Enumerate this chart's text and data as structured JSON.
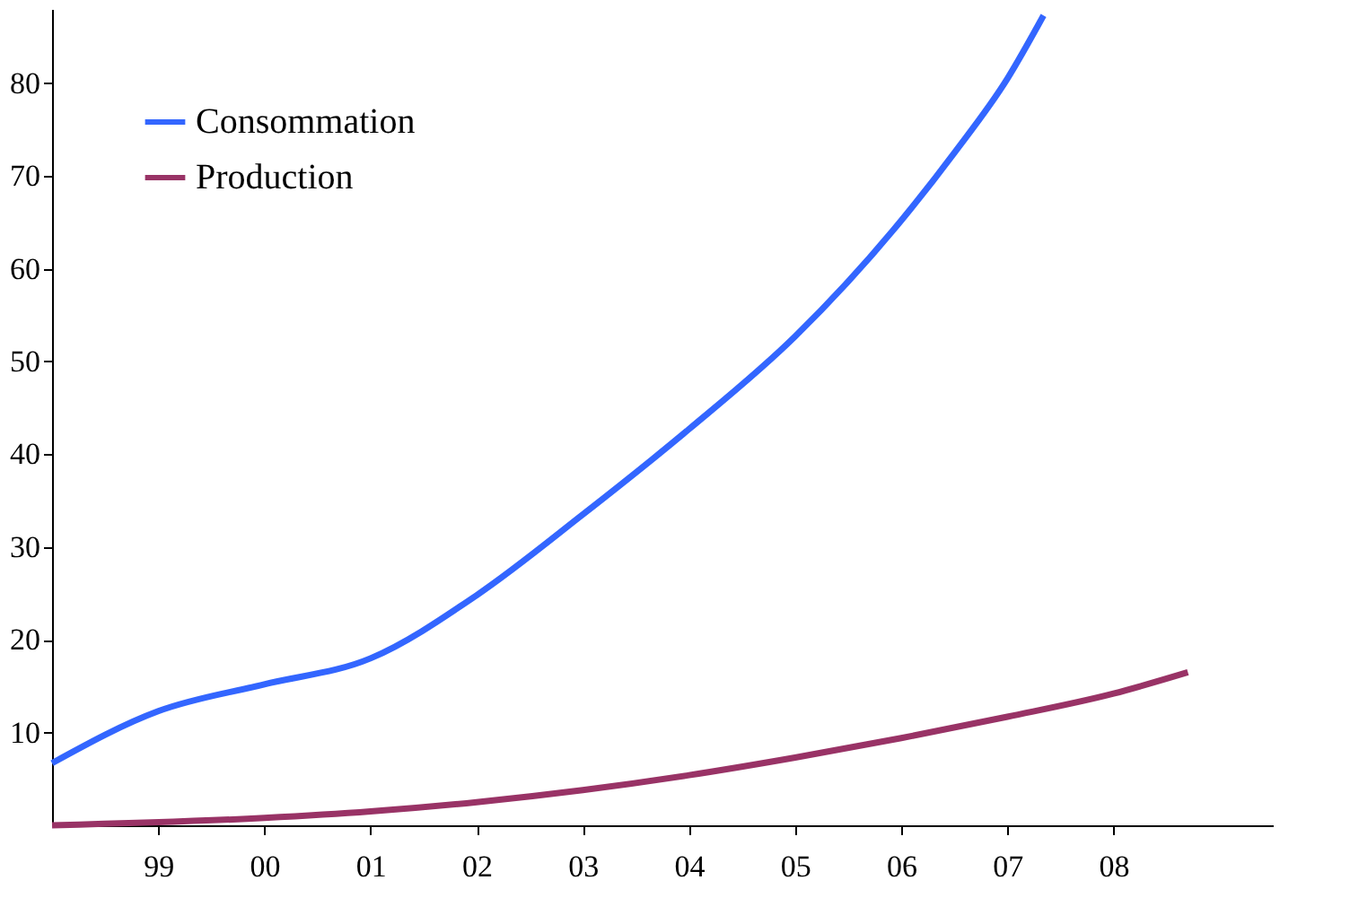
{
  "chart_data": {
    "type": "line",
    "xlim": [
      1998,
      2009.5
    ],
    "ylim": [
      0,
      88
    ],
    "xticks": [
      {
        "value": 1999,
        "label": "99"
      },
      {
        "value": 2000,
        "label": "00"
      },
      {
        "value": 2001,
        "label": "01"
      },
      {
        "value": 2002,
        "label": "02"
      },
      {
        "value": 2003,
        "label": "03"
      },
      {
        "value": 2004,
        "label": "04"
      },
      {
        "value": 2005,
        "label": "05"
      },
      {
        "value": 2006,
        "label": "06"
      },
      {
        "value": 2007,
        "label": "07"
      },
      {
        "value": 2008,
        "label": "08"
      }
    ],
    "yticks": [
      10,
      20,
      30,
      40,
      50,
      60,
      70,
      80
    ],
    "series": [
      {
        "name": "Consommation",
        "color": "#3366ff",
        "x": [
          1998,
          1999,
          2000,
          2001,
          2002,
          2003,
          2004,
          2005,
          2006,
          2006.5,
          2007,
          2007.34
        ],
        "values": [
          6.7,
          12.3,
          15.2,
          18,
          24.8,
          33.5,
          42.7,
          52.7,
          65.2,
          72.5,
          80.5,
          87.3
        ]
      },
      {
        "name": "Production",
        "color": "#993366",
        "x": [
          1998,
          2000,
          2001,
          2002,
          2003,
          2004,
          2005,
          2006,
          2007,
          2008,
          2008.7
        ],
        "values": [
          0,
          0.8,
          1.5,
          2.5,
          3.8,
          5.4,
          7.3,
          9.4,
          11.7,
          14.2,
          16.5
        ]
      }
    ],
    "legend": "top left",
    "grid": false,
    "marker": "none",
    "line_style": "solid"
  }
}
